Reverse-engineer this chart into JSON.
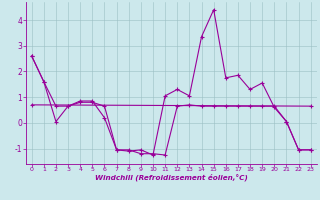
{
  "background_color": "#cce8ec",
  "line_color": "#990099",
  "xlabel": "Windchill (Refroidissement éolien,°C)",
  "xlim": [
    -0.5,
    23.5
  ],
  "ylim": [
    -1.6,
    4.7
  ],
  "yticks": [
    -1,
    0,
    1,
    2,
    3,
    4
  ],
  "xticks": [
    0,
    1,
    2,
    3,
    4,
    5,
    6,
    7,
    8,
    9,
    10,
    11,
    12,
    13,
    14,
    15,
    16,
    17,
    18,
    19,
    20,
    21,
    22,
    23
  ],
  "series": [
    {
      "x": [
        0,
        1,
        2,
        3,
        4,
        5,
        6,
        7,
        8,
        9,
        10,
        11,
        12,
        13,
        14,
        15,
        16,
        17,
        18,
        19,
        20,
        21,
        22,
        23
      ],
      "y": [
        2.6,
        1.6,
        0.65,
        0.65,
        0.8,
        0.8,
        0.65,
        -1.05,
        -1.1,
        -1.05,
        -1.25,
        1.05,
        1.3,
        1.05,
        3.35,
        4.4,
        1.75,
        1.85,
        1.3,
        1.55,
        0.6,
        0.05,
        -1.05,
        -1.05
      ]
    },
    {
      "x": [
        0,
        23
      ],
      "y": [
        0.7,
        0.65
      ]
    },
    {
      "x": [
        0,
        1,
        2,
        3,
        4,
        5,
        6,
        7,
        8,
        9,
        10,
        11,
        12,
        13,
        14,
        15,
        16,
        17,
        18,
        19,
        20,
        21,
        22,
        23
      ],
      "y": [
        2.6,
        1.6,
        0.05,
        0.65,
        0.85,
        0.85,
        0.2,
        -1.05,
        -1.05,
        -1.2,
        -1.2,
        -1.25,
        0.65,
        0.7,
        0.65,
        0.65,
        0.65,
        0.65,
        0.65,
        0.65,
        0.65,
        0.05,
        -1.05,
        -1.05
      ]
    }
  ]
}
